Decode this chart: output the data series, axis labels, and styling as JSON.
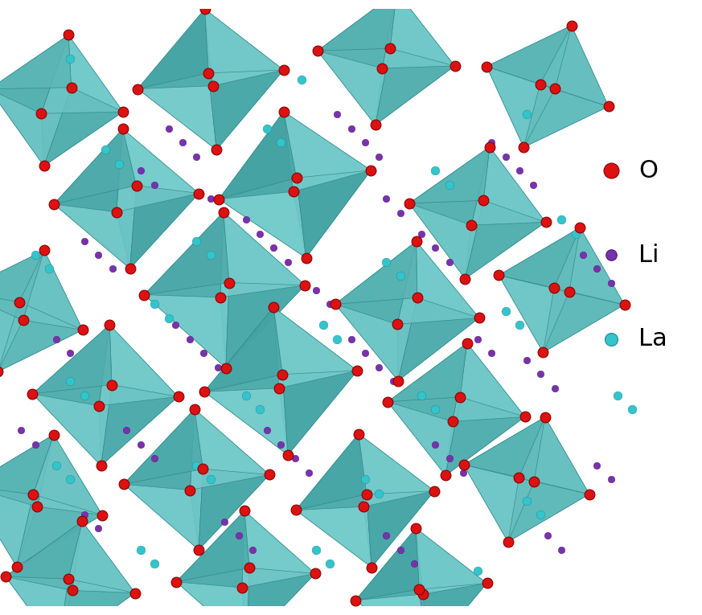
{
  "background_color": "#ffffff",
  "octahedra_face_color": "#5bbfbf",
  "octahedra_face_color_dark": "#3d9e9e",
  "octahedra_face_color_light": "#7fd4d4",
  "octahedra_edge_color": "#2e8888",
  "octahedra_alpha": 0.85,
  "O_color": "#dd1111",
  "Li_color": "#7733aa",
  "La_color": "#33c4cc",
  "O_size": 85,
  "Li_size": 38,
  "La_size": 60,
  "legend_labels": [
    "O",
    "Li",
    "La"
  ],
  "legend_colors": [
    "#dd1111",
    "#7733aa",
    "#33c4cc"
  ],
  "legend_marker_sizes": [
    14,
    10,
    12
  ],
  "legend_fontsize": 22,
  "figsize": [
    8.73,
    7.65
  ],
  "dpi": 100,
  "xlim": [
    0,
    10
  ],
  "ylim": [
    0,
    8.5
  ]
}
